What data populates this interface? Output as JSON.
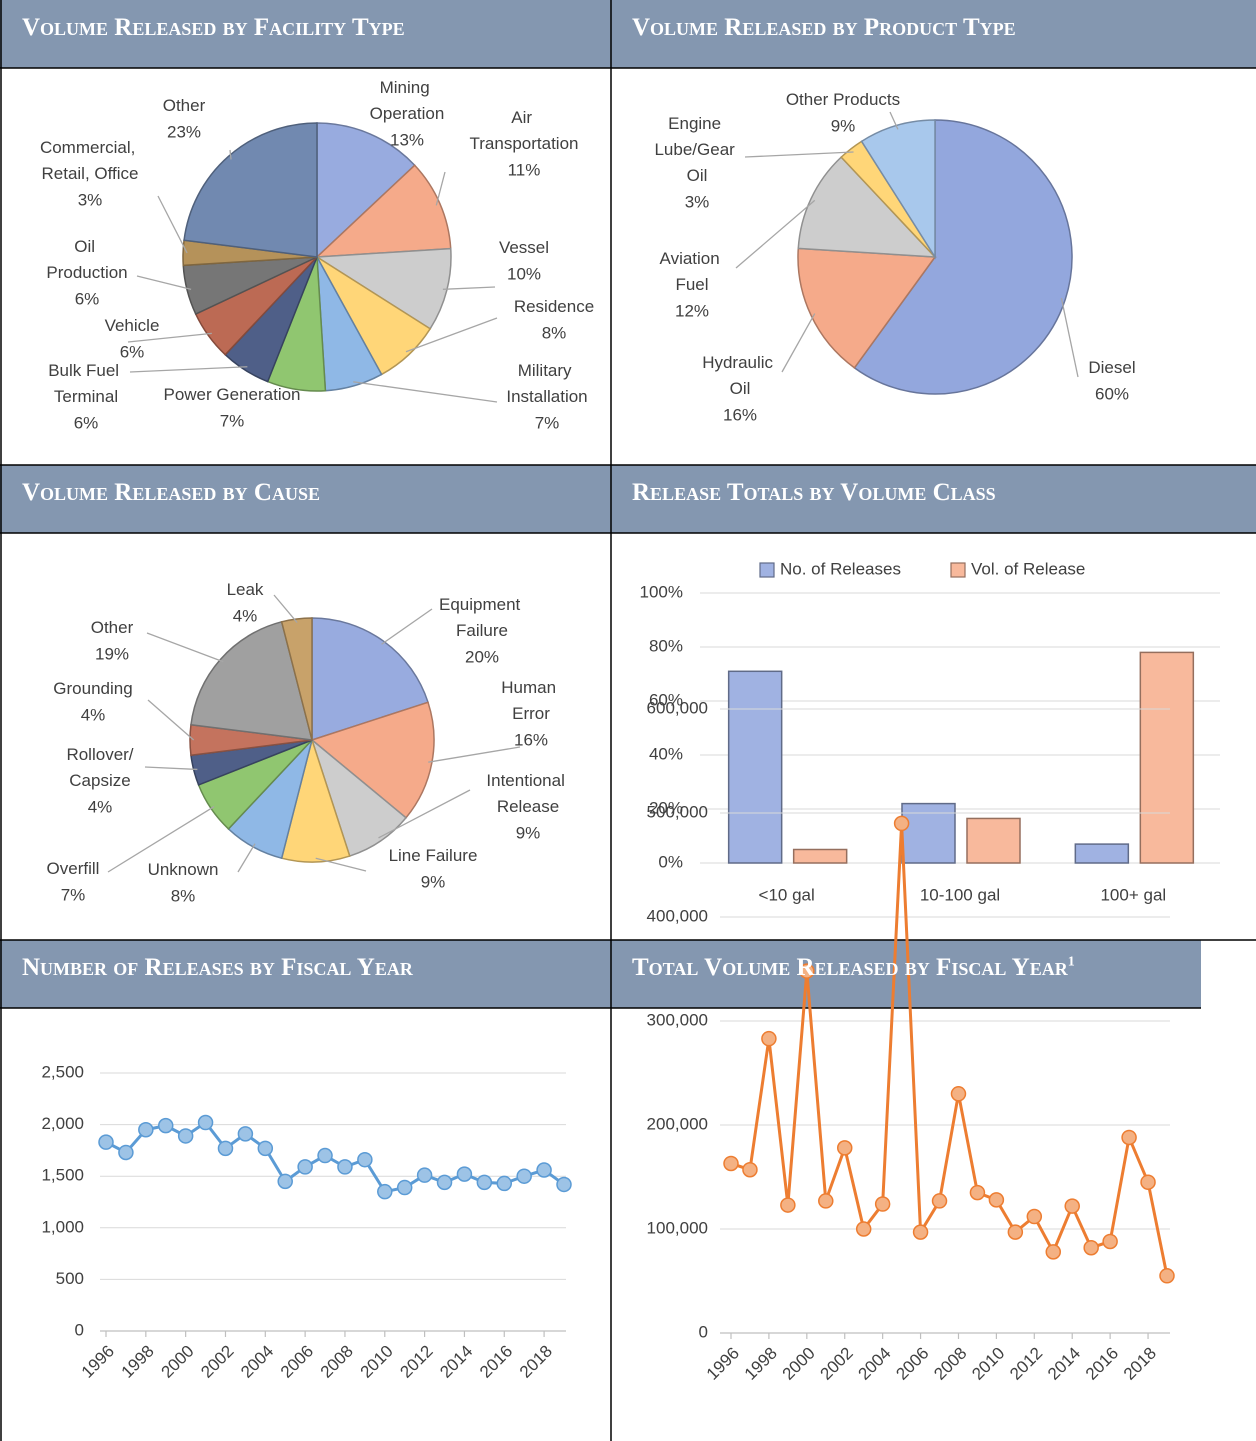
{
  "chart_data": [
    {
      "type": "pie",
      "title": "Volume Released by Facility Type",
      "categories": [
        "Mining Operation",
        "Air Transportation",
        "Vessel",
        "Residence",
        "Military Installation",
        "Power Generation",
        "Bulk Fuel Terminal",
        "Vehicle",
        "Oil Production",
        "Commercial, Retail, Office",
        "Other"
      ],
      "values": [
        13,
        11,
        10,
        8,
        7,
        7,
        6,
        6,
        6,
        3,
        23
      ],
      "value_labels": [
        "13%",
        "11%",
        "10%",
        "8%",
        "7%",
        "7%",
        "6%",
        "6%",
        "6%",
        "3%",
        "23%"
      ],
      "colors": [
        "#98ABDF",
        "#F5AA8A",
        "#CDCDCD",
        "#FFD678",
        "#8FB8E6",
        "#90C670",
        "#4F5F88",
        "#BC6A54",
        "#767676",
        "#B5925A",
        "#7189B0"
      ]
    },
    {
      "type": "pie",
      "title": "Volume Released by Product Type",
      "categories": [
        "Diesel",
        "Hydraulic Oil",
        "Aviation Fuel",
        "Engine Lube/Gear Oil",
        "Other Products"
      ],
      "values": [
        60,
        16,
        12,
        3,
        9
      ],
      "value_labels": [
        "60%",
        "16%",
        "12%",
        "3%",
        "9%"
      ],
      "colors": [
        "#93A7DD",
        "#F5AA8A",
        "#CDCDCD",
        "#FFD678",
        "#A8C8EC"
      ]
    },
    {
      "type": "pie",
      "title": "Volume Released by Cause",
      "categories": [
        "Equipment Failure",
        "Human Error",
        "Intentional Release",
        "Line Failure",
        "Unknown",
        "Overfill",
        "Rollover/Capsize",
        "Grounding",
        "Other",
        "Leak"
      ],
      "values": [
        20,
        16,
        9,
        9,
        8,
        7,
        4,
        4,
        19,
        4
      ],
      "value_labels": [
        "20%",
        "16%",
        "9%",
        "9%",
        "8%",
        "7%",
        "4%",
        "4%",
        "19%",
        "4%"
      ],
      "colors": [
        "#98ABDF",
        "#F5AA8A",
        "#CDCDCD",
        "#FFD678",
        "#8FB8E6",
        "#90C670",
        "#4F5F88",
        "#C4735E",
        "#A0A0A0",
        "#C8A26A"
      ]
    },
    {
      "type": "bar",
      "title": "Release Totals by Volume Class",
      "categories": [
        "<10 gal",
        "10-100 gal",
        "100+ gal"
      ],
      "series": [
        {
          "name": "No. of Releases",
          "color": "#A0B2E2",
          "values": [
            71,
            22,
            7
          ]
        },
        {
          "name": "Vol. of Release",
          "color": "#F8B99C",
          "values": [
            5,
            16.5,
            78
          ]
        }
      ],
      "ylim": [
        0,
        100
      ],
      "yticks": [
        {
          "value": 0,
          "label": "0%"
        },
        {
          "value": 20,
          "label": "20%"
        },
        {
          "value": 40,
          "label": "40%"
        },
        {
          "value": 60,
          "label": "60%"
        },
        {
          "value": 80,
          "label": "80%"
        },
        {
          "value": 100,
          "label": "100%"
        }
      ],
      "grid": true,
      "legend": "top"
    },
    {
      "type": "line",
      "title": "Number of Releases by Fiscal Year",
      "x": [
        1996,
        1997,
        1998,
        1999,
        2000,
        2001,
        2002,
        2003,
        2004,
        2005,
        2006,
        2007,
        2008,
        2009,
        2010,
        2011,
        2012,
        2013,
        2014,
        2015,
        2016,
        2017,
        2018,
        2019
      ],
      "values": [
        1830,
        1730,
        1950,
        1990,
        1890,
        2020,
        1770,
        1910,
        1770,
        1450,
        1590,
        1700,
        1590,
        1660,
        1350,
        1390,
        1510,
        1440,
        1520,
        1440,
        1430,
        1500,
        1560,
        1420
      ],
      "color": "#5B9BD5",
      "marker_color": "#9DC3E6",
      "xlim": [
        1996,
        2019
      ],
      "xticks": [
        1996,
        1998,
        2000,
        2002,
        2004,
        2006,
        2008,
        2010,
        2012,
        2014,
        2016,
        2018
      ],
      "ylim": [
        0,
        2500
      ],
      "yticks": [
        0,
        500,
        {
          "value": 1000,
          "label": "1,000"
        },
        {
          "value": 1500,
          "label": "1,500"
        },
        {
          "value": 2000,
          "label": "2,000"
        },
        {
          "value": 2500,
          "label": "2,500"
        }
      ],
      "grid": true
    },
    {
      "type": "line",
      "title": "Total Volume Released by Fiscal Year",
      "title_note": "1",
      "x": [
        1996,
        1997,
        1998,
        1999,
        2000,
        2001,
        2002,
        2003,
        2004,
        2005,
        2006,
        2007,
        2008,
        2009,
        2010,
        2011,
        2012,
        2013,
        2014,
        2015,
        2016,
        2017,
        2018,
        2019
      ],
      "values": [
        163000,
        157000,
        283000,
        123000,
        348000,
        127000,
        178000,
        100000,
        124000,
        490000,
        97000,
        127000,
        230000,
        135000,
        128000,
        97000,
        112000,
        78000,
        122000,
        82000,
        88000,
        188000,
        145000,
        55000
      ],
      "color": "#ED7D31",
      "marker_color": "#F4B183",
      "xlim": [
        1996,
        2019
      ],
      "xticks": [
        1996,
        1998,
        2000,
        2002,
        2004,
        2006,
        2008,
        2010,
        2012,
        2014,
        2016,
        2018
      ],
      "ylim": [
        0,
        600000
      ],
      "yticks": [
        0,
        {
          "value": 100000,
          "label": "100,000"
        },
        {
          "value": 200000,
          "label": "200,000"
        },
        {
          "value": 300000,
          "label": "300,000"
        },
        {
          "value": 400000,
          "label": "400,000"
        },
        {
          "value": 500000,
          "label": "500,000"
        },
        {
          "value": 600000,
          "label": "600,000"
        }
      ],
      "grid": true
    }
  ]
}
